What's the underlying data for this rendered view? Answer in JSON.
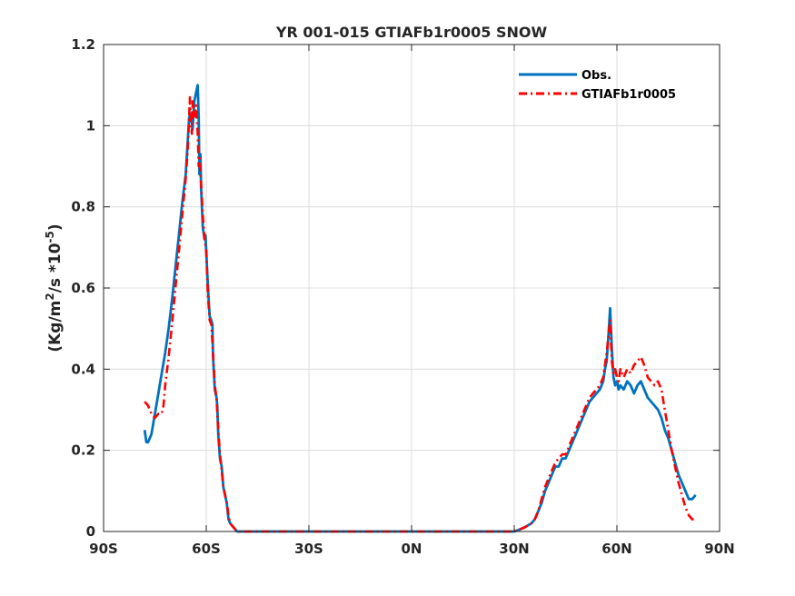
{
  "chart_data": {
    "type": "line",
    "title": "YR 001-015 GTIAFb1r0005 SNOW",
    "xlabel": "",
    "ylabel_main": "(Kg/m",
    "ylabel_sup1": "2",
    "ylabel_mid": "/s *10",
    "ylabel_sup2": "-5",
    "ylabel_end": ")",
    "xlim": [
      -90,
      90
    ],
    "ylim": [
      0,
      1.2
    ],
    "grid": true,
    "legend_position": "top-right",
    "x_ticks": [
      {
        "value": -90,
        "label": "90S"
      },
      {
        "value": -60,
        "label": "60S"
      },
      {
        "value": -30,
        "label": "30S"
      },
      {
        "value": 0,
        "label": "0N"
      },
      {
        "value": 30,
        "label": "30N"
      },
      {
        "value": 60,
        "label": "60N"
      },
      {
        "value": 90,
        "label": "90N"
      }
    ],
    "y_ticks": [
      {
        "value": 0,
        "label": "0"
      },
      {
        "value": 0.2,
        "label": "0.2"
      },
      {
        "value": 0.4,
        "label": "0.4"
      },
      {
        "value": 0.6,
        "label": "0.6"
      },
      {
        "value": 0.8,
        "label": "0.8"
      },
      {
        "value": 1.0,
        "label": "1"
      },
      {
        "value": 1.2,
        "label": "1.2"
      }
    ],
    "series": [
      {
        "name": "Obs.",
        "color": "#0072BD",
        "style": "solid",
        "points": [
          [
            -78,
            0.25
          ],
          [
            -77.5,
            0.22
          ],
          [
            -77,
            0.22
          ],
          [
            -76,
            0.24
          ],
          [
            -75,
            0.29
          ],
          [
            -74,
            0.34
          ],
          [
            -73,
            0.39
          ],
          [
            -72,
            0.44
          ],
          [
            -71,
            0.5
          ],
          [
            -70,
            0.57
          ],
          [
            -69,
            0.65
          ],
          [
            -68,
            0.73
          ],
          [
            -67,
            0.81
          ],
          [
            -66,
            0.88
          ],
          [
            -65.5,
            0.95
          ],
          [
            -65,
            1.02
          ],
          [
            -64.5,
            1.03
          ],
          [
            -64,
            0.99
          ],
          [
            -63.5,
            1.06
          ],
          [
            -63,
            1.08
          ],
          [
            -62.5,
            1.1
          ],
          [
            -62.2,
            1.02
          ],
          [
            -62,
            0.88
          ],
          [
            -61.7,
            0.93
          ],
          [
            -61.5,
            0.85
          ],
          [
            -61,
            0.75
          ],
          [
            -60.5,
            0.72
          ],
          [
            -60.2,
            0.73
          ],
          [
            -60,
            0.69
          ],
          [
            -59.5,
            0.6
          ],
          [
            -59,
            0.53
          ],
          [
            -58.5,
            0.52
          ],
          [
            -58.2,
            0.51
          ],
          [
            -58,
            0.43
          ],
          [
            -57.5,
            0.35
          ],
          [
            -57,
            0.33
          ],
          [
            -56.8,
            0.31
          ],
          [
            -56.5,
            0.24
          ],
          [
            -56,
            0.18
          ],
          [
            -55.5,
            0.16
          ],
          [
            -55,
            0.11
          ],
          [
            -54.5,
            0.09
          ],
          [
            -54,
            0.07
          ],
          [
            -53.5,
            0.03
          ],
          [
            -53,
            0.02
          ],
          [
            -52,
            0.01
          ],
          [
            -51,
            0.0
          ],
          [
            -40,
            0.0
          ],
          [
            -20,
            0.0
          ],
          [
            0,
            0.0
          ],
          [
            20,
            0.0
          ],
          [
            30,
            0.0
          ],
          [
            31,
            0.003
          ],
          [
            33,
            0.01
          ],
          [
            35,
            0.02
          ],
          [
            36,
            0.03
          ],
          [
            37,
            0.05
          ],
          [
            38,
            0.07
          ],
          [
            39,
            0.1
          ],
          [
            40,
            0.12
          ],
          [
            41,
            0.14
          ],
          [
            42,
            0.16
          ],
          [
            43,
            0.16
          ],
          [
            44,
            0.18
          ],
          [
            45,
            0.18
          ],
          [
            46,
            0.2
          ],
          [
            47,
            0.22
          ],
          [
            48,
            0.24
          ],
          [
            49,
            0.26
          ],
          [
            50,
            0.28
          ],
          [
            51,
            0.3
          ],
          [
            52,
            0.32
          ],
          [
            53,
            0.33
          ],
          [
            54,
            0.34
          ],
          [
            55,
            0.35
          ],
          [
            56,
            0.37
          ],
          [
            56.5,
            0.4
          ],
          [
            57,
            0.42
          ],
          [
            57.5,
            0.48
          ],
          [
            58,
            0.55
          ],
          [
            58.5,
            0.45
          ],
          [
            59,
            0.38
          ],
          [
            59.5,
            0.36
          ],
          [
            60,
            0.37
          ],
          [
            60.5,
            0.35
          ],
          [
            61,
            0.36
          ],
          [
            62,
            0.35
          ],
          [
            63,
            0.37
          ],
          [
            64,
            0.36
          ],
          [
            65,
            0.34
          ],
          [
            66,
            0.36
          ],
          [
            67,
            0.37
          ],
          [
            68,
            0.35
          ],
          [
            69,
            0.33
          ],
          [
            70,
            0.32
          ],
          [
            71,
            0.31
          ],
          [
            72,
            0.3
          ],
          [
            73,
            0.28
          ],
          [
            74,
            0.25
          ],
          [
            75,
            0.23
          ],
          [
            76,
            0.2
          ],
          [
            77,
            0.17
          ],
          [
            78,
            0.14
          ],
          [
            79,
            0.12
          ],
          [
            80,
            0.1
          ],
          [
            81,
            0.08
          ],
          [
            82,
            0.08
          ],
          [
            83,
            0.09
          ]
        ]
      },
      {
        "name": "GTIAFb1r0005",
        "color": "#FF0000",
        "style": "dashdot",
        "points": [
          [
            -78,
            0.32
          ],
          [
            -77,
            0.31
          ],
          [
            -76,
            0.29
          ],
          [
            -75,
            0.28
          ],
          [
            -74,
            0.29
          ],
          [
            -73.5,
            0.29
          ],
          [
            -73,
            0.29
          ],
          [
            -72.5,
            0.31
          ],
          [
            -72,
            0.36
          ],
          [
            -71,
            0.43
          ],
          [
            -70,
            0.51
          ],
          [
            -69,
            0.6
          ],
          [
            -68,
            0.69
          ],
          [
            -67,
            0.78
          ],
          [
            -66,
            0.87
          ],
          [
            -65.5,
            0.93
          ],
          [
            -65,
            1.02
          ],
          [
            -64.8,
            1.07
          ],
          [
            -64.5,
            1.0
          ],
          [
            -64.2,
            0.98
          ],
          [
            -64,
            1.06
          ],
          [
            -63.5,
            1.02
          ],
          [
            -63,
            1.05
          ],
          [
            -62.5,
            0.98
          ],
          [
            -62.2,
            0.9
          ],
          [
            -62,
            0.92
          ],
          [
            -61.5,
            0.86
          ],
          [
            -61,
            0.78
          ],
          [
            -60.5,
            0.72
          ],
          [
            -60,
            0.69
          ],
          [
            -59.5,
            0.58
          ],
          [
            -59,
            0.52
          ],
          [
            -58.5,
            0.51
          ],
          [
            -58,
            0.44
          ],
          [
            -57.5,
            0.36
          ],
          [
            -57,
            0.33
          ],
          [
            -56.5,
            0.25
          ],
          [
            -56,
            0.19
          ],
          [
            -55.5,
            0.15
          ],
          [
            -55,
            0.11
          ],
          [
            -54.5,
            0.09
          ],
          [
            -54,
            0.07
          ],
          [
            -53.5,
            0.04
          ],
          [
            -53,
            0.02
          ],
          [
            -52,
            0.01
          ],
          [
            -51,
            0.0
          ],
          [
            -40,
            0.0
          ],
          [
            -20,
            0.0
          ],
          [
            0,
            0.0
          ],
          [
            20,
            0.0
          ],
          [
            30,
            0.0
          ],
          [
            31,
            0.003
          ],
          [
            33,
            0.01
          ],
          [
            35,
            0.02
          ],
          [
            36,
            0.03
          ],
          [
            37,
            0.05
          ],
          [
            38,
            0.08
          ],
          [
            39,
            0.11
          ],
          [
            40,
            0.13
          ],
          [
            41,
            0.15
          ],
          [
            42,
            0.17
          ],
          [
            43,
            0.18
          ],
          [
            44,
            0.19
          ],
          [
            45,
            0.19
          ],
          [
            46,
            0.21
          ],
          [
            47,
            0.23
          ],
          [
            48,
            0.25
          ],
          [
            49,
            0.27
          ],
          [
            50,
            0.29
          ],
          [
            51,
            0.31
          ],
          [
            52,
            0.33
          ],
          [
            53,
            0.34
          ],
          [
            54,
            0.35
          ],
          [
            55,
            0.36
          ],
          [
            56,
            0.38
          ],
          [
            56.5,
            0.41
          ],
          [
            57,
            0.44
          ],
          [
            57.5,
            0.48
          ],
          [
            58,
            0.52
          ],
          [
            58.5,
            0.42
          ],
          [
            59,
            0.39
          ],
          [
            59.5,
            0.4
          ],
          [
            60,
            0.38
          ],
          [
            60.5,
            0.37
          ],
          [
            61,
            0.4
          ],
          [
            62,
            0.38
          ],
          [
            63,
            0.4
          ],
          [
            64,
            0.39
          ],
          [
            65,
            0.41
          ],
          [
            66,
            0.42
          ],
          [
            67,
            0.43
          ],
          [
            68,
            0.41
          ],
          [
            69,
            0.38
          ],
          [
            70,
            0.37
          ],
          [
            71,
            0.36
          ],
          [
            72,
            0.37
          ],
          [
            73,
            0.35
          ],
          [
            74,
            0.3
          ],
          [
            75,
            0.25
          ],
          [
            76,
            0.2
          ],
          [
            77,
            0.16
          ],
          [
            78,
            0.12
          ],
          [
            79,
            0.09
          ],
          [
            80,
            0.06
          ],
          [
            81,
            0.04
          ],
          [
            82,
            0.03
          ],
          [
            83,
            0.03
          ]
        ]
      }
    ]
  }
}
